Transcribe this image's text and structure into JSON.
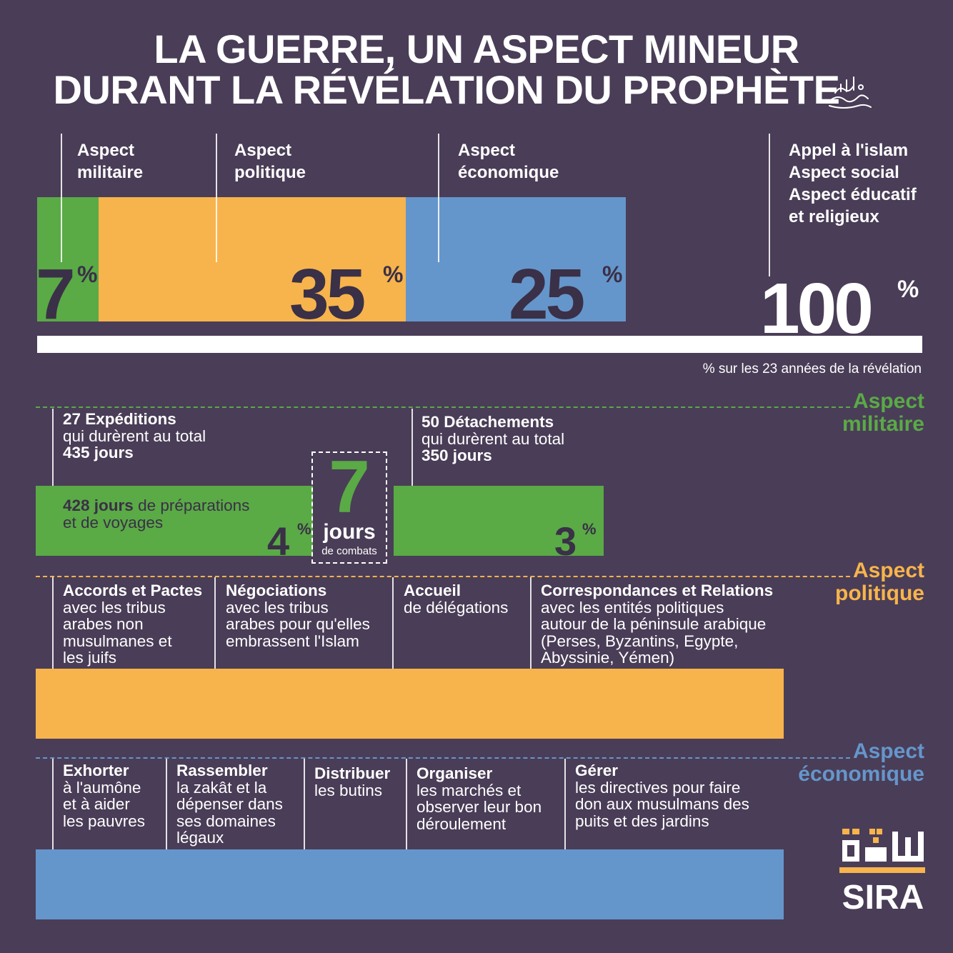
{
  "title": {
    "line1": "LA GUERRE, UN ASPECT MINEUR",
    "line2": "DURANT LA RÉVÉLATION DU PROPHÈTE"
  },
  "colors": {
    "background": "#4a3d57",
    "military": "#5aaa46",
    "political": "#f7b44c",
    "economic": "#6596cb",
    "dark_text": "#3a3047",
    "white": "#ffffff"
  },
  "chart_data": {
    "type": "bar",
    "title": "LA GUERRE, UN ASPECT MINEUR DURANT LA RÉVÉLATION DU PROPHÈTE",
    "xlabel": "% sur les 23 années de la révélation",
    "categories": [
      "Aspect militaire",
      "Aspect politique",
      "Aspect économique",
      "Appel à l'islam Aspect social Aspect éducatif et religieux"
    ],
    "values": [
      7,
      35,
      25,
      100
    ],
    "unit": "%",
    "xlim": [
      0,
      100
    ]
  },
  "top": {
    "labels": [
      {
        "line1": "Aspect",
        "line2": "militaire"
      },
      {
        "line1": "Aspect",
        "line2": "politique"
      },
      {
        "line1": "Aspect",
        "line2": "économique"
      }
    ],
    "full_label": [
      "Appel à l'islam",
      "Aspect social",
      "Aspect éducatif",
      "et religieux"
    ],
    "values": [
      "7",
      "35",
      "25",
      "100"
    ],
    "pct_sign": "%",
    "caption": "% sur les 23 années de la révélation"
  },
  "military": {
    "section_label": [
      "Aspect",
      "militaire"
    ],
    "expeditions": {
      "title": "27 Expéditions",
      "line": "qui durèrent au total",
      "days": "435 jours"
    },
    "detachments": {
      "title": "50 Détachements",
      "line": "qui durèrent au total",
      "days": "350 jours"
    },
    "prep": {
      "days": "428 jours",
      "rest": " de préparations",
      "line2": "et de voyages"
    },
    "combat": {
      "number": "7",
      "word": "jours",
      "sub": "de combats"
    },
    "pct_left": "4",
    "pct_right": "3",
    "pct_sign": "%"
  },
  "political": {
    "section_label": [
      "Aspect",
      "politique"
    ],
    "items": [
      {
        "title": "Accords et Pactes",
        "lines": [
          "avec les tribus",
          "arabes non",
          "musulmanes et",
          "les juifs"
        ]
      },
      {
        "title": "Négociations",
        "lines": [
          "avec les tribus",
          "arabes pour qu'elles",
          "embrassent l'Islam"
        ]
      },
      {
        "title": "Accueil",
        "lines": [
          "de délégations"
        ]
      },
      {
        "title": "Correspondances et Relations",
        "lines": [
          "avec les entités politiques",
          "autour de la péninsule arabique",
          "(Perses, Byzantins, Egypte,",
          "Abyssinie, Yémen)"
        ]
      }
    ]
  },
  "economic": {
    "section_label": [
      "Aspect",
      "économique"
    ],
    "items": [
      {
        "title": "Exhorter",
        "lines": [
          "à l'aumône",
          "et à aider",
          "les pauvres"
        ]
      },
      {
        "title": "Rassembler",
        "lines": [
          "la zakât et la",
          "dépenser dans",
          "ses domaines",
          "légaux"
        ]
      },
      {
        "title": "Distribuer",
        "lines": [
          "les butins"
        ]
      },
      {
        "title": "Organiser",
        "lines": [
          "les marchés et",
          "observer leur bon",
          "déroulement"
        ]
      },
      {
        "title": "Gérer",
        "lines": [
          "les directives pour faire",
          "don aux musulmans des",
          "puits et des jardins"
        ]
      }
    ]
  },
  "logo": {
    "text": "SIRA",
    "icon": "sira-arabic-logo-icon"
  },
  "honorific_icon": "salawat-calligraphy-icon"
}
